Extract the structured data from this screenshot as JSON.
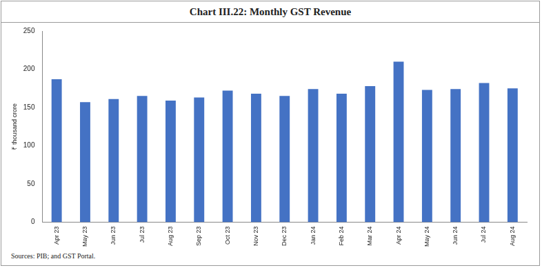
{
  "chart_data": {
    "type": "bar",
    "title": "Chart III.22: Monthly GST Revenue",
    "y_label": "₹ thousand crore",
    "source": "Sources: PIB; and GST Portal.",
    "categories": [
      "Apr 23",
      "May 23",
      "Jun 23",
      "Jul 23",
      "Aug 23",
      "Sep 23",
      "Oct 23",
      "Nov 23",
      "Dec 23",
      "Jan 24",
      "Feb 24",
      "Mar 24",
      "Apr 24",
      "May 24",
      "Jun 24",
      "Jul 24",
      "Aug 24"
    ],
    "values": [
      187,
      157,
      161,
      165,
      159,
      163,
      172,
      168,
      165,
      174,
      168,
      178,
      210,
      173,
      174,
      182,
      175
    ],
    "color": "#4472c4",
    "ylim": [
      0,
      250
    ],
    "yticks": [
      0,
      50,
      100,
      150,
      200,
      250
    ],
    "grid": false
  }
}
